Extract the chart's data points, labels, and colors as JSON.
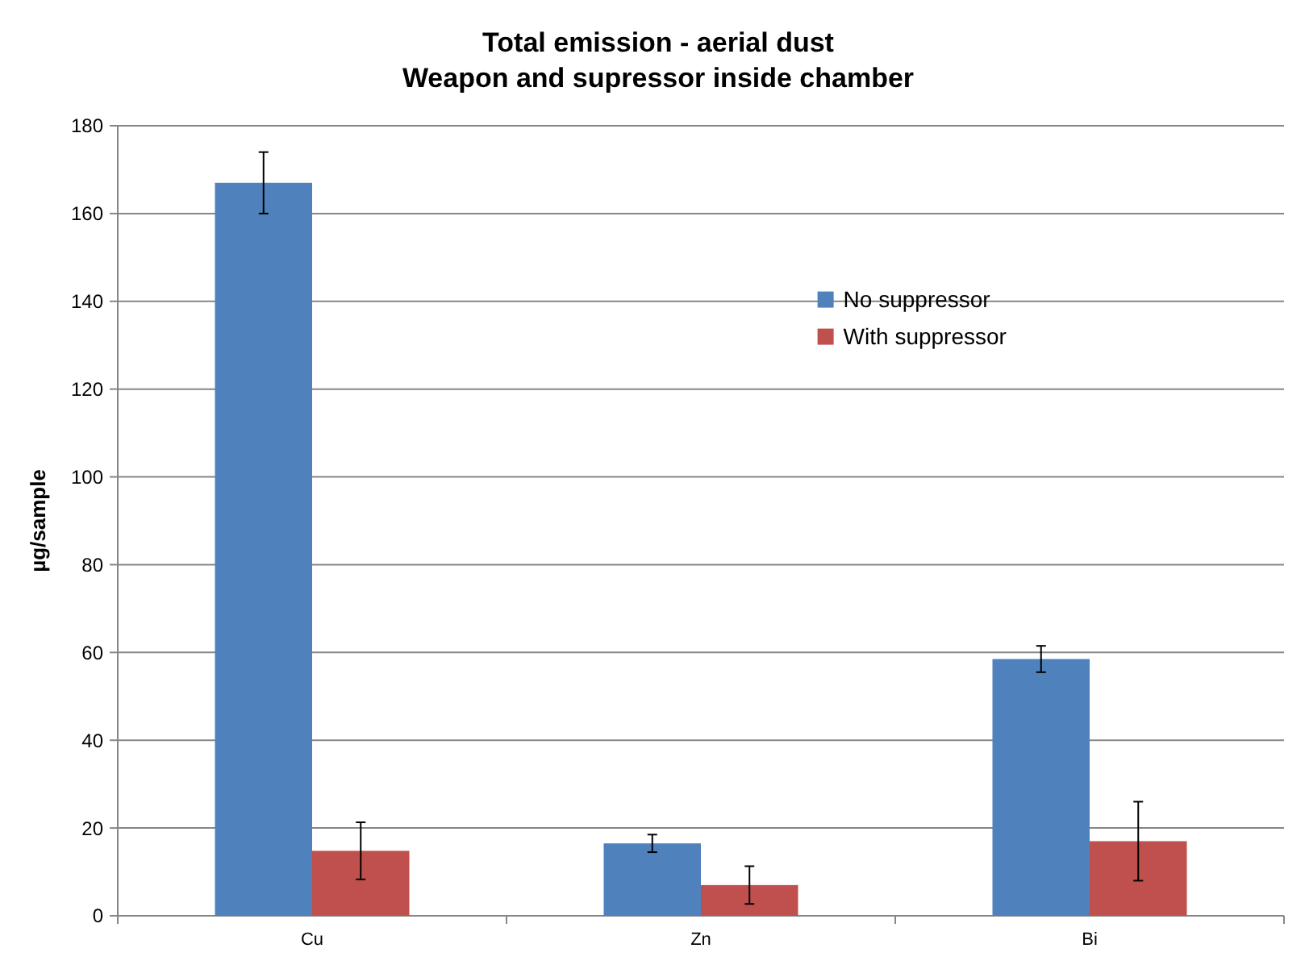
{
  "chart_data": {
    "type": "bar",
    "title": "Total emission - aerial dust",
    "subtitle": "Weapon and supressor inside chamber",
    "ylabel": "µg/sample",
    "categories": [
      "Cu",
      "Zn",
      "Bi"
    ],
    "series": [
      {
        "name": "No suppressor",
        "color": "#4f81bd",
        "values": [
          167,
          16.5,
          58.5
        ],
        "errors": [
          7,
          2,
          3
        ]
      },
      {
        "name": "With suppressor",
        "color": "#c0504d",
        "values": [
          14.8,
          7,
          17
        ],
        "errors": [
          6.5,
          4.3,
          9
        ]
      }
    ],
    "ylim": [
      0,
      180
    ],
    "yticks": [
      0,
      20,
      40,
      60,
      80,
      100,
      120,
      140,
      160,
      180
    ],
    "grid": "y",
    "legend": "right"
  }
}
